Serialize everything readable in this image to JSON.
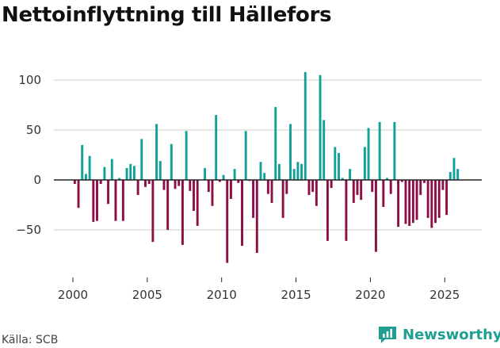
{
  "title": "Nettoinflyttning till Hällefors",
  "source": "Källa: SCB",
  "brand": {
    "name": "Newsworthy",
    "icon": "newsworthy-logo-icon"
  },
  "colors": {
    "positive": "#12a198",
    "negative": "#8c0f45",
    "grid": "#dddddd",
    "axis": "#222222",
    "text": "#333333"
  },
  "chart_data": {
    "type": "bar",
    "title": "Nettoinflyttning till Hällefors",
    "xlabel": "",
    "ylabel": "",
    "ylim": [
      -95,
      115
    ],
    "yticks": [
      100,
      50,
      0,
      -50
    ],
    "ytick_labels": [
      "100",
      "50",
      "0",
      "−50"
    ],
    "xticks": [
      2000,
      2005,
      2010,
      2015,
      2020,
      2025
    ],
    "xtick_labels": [
      "2000",
      "2005",
      "2010",
      "2015",
      "2020",
      "2025"
    ],
    "grid": true,
    "frequency": "quarterly",
    "start": 2000,
    "values": [
      -4,
      -28,
      35,
      6,
      24,
      -42,
      -41,
      -4,
      13,
      -24,
      21,
      -41,
      2,
      -41,
      12,
      16,
      14,
      -15,
      41,
      -7,
      -4,
      -62,
      56,
      19,
      -10,
      -50,
      36,
      -9,
      -6,
      -65,
      49,
      -11,
      -31,
      -46,
      0,
      12,
      -12,
      -26,
      65,
      -2,
      5,
      -83,
      -19,
      11,
      -3,
      -66,
      49,
      -1,
      -38,
      -73,
      18,
      7,
      -14,
      -23,
      73,
      16,
      -38,
      -14,
      56,
      11,
      18,
      16,
      108,
      -15,
      -12,
      -26,
      105,
      60,
      -61,
      -8,
      33,
      27,
      2,
      -61,
      11,
      -23,
      -15,
      -20,
      33,
      52,
      -12,
      -72,
      58,
      -27,
      2,
      -14,
      58,
      -47,
      -2,
      -44,
      -46,
      -43,
      -40,
      -15,
      -3,
      -38,
      -48,
      -43,
      -38,
      -10,
      -35,
      8,
      22,
      11
    ]
  }
}
